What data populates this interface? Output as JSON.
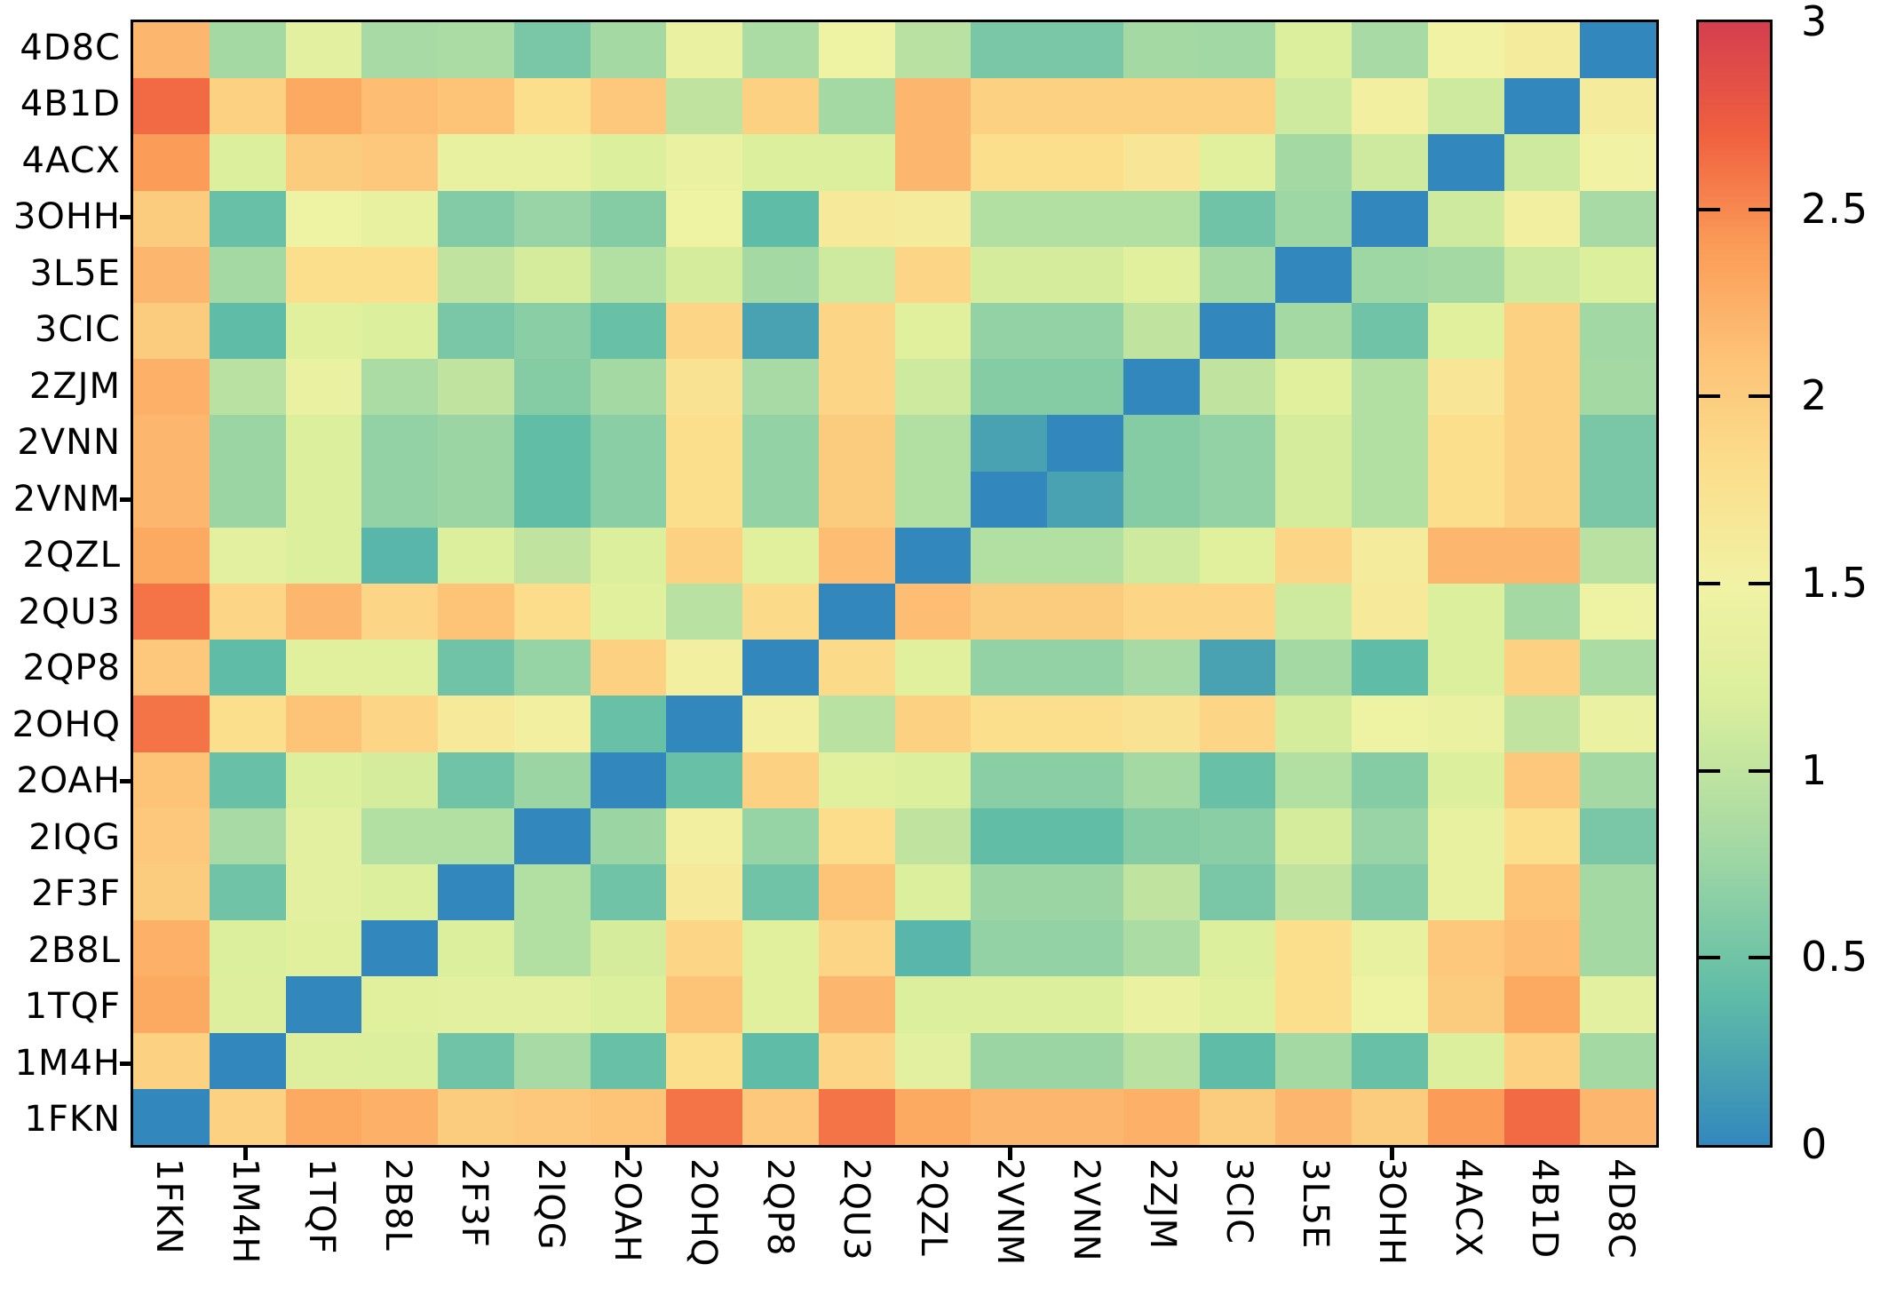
{
  "colors": {
    "background": "#ffffff",
    "plot_border": "#000000",
    "text": "#000000"
  },
  "chart_data": {
    "type": "heatmap",
    "title": "",
    "xlabel": "",
    "ylabel": "",
    "x_labels": [
      "1FKN",
      "1M4H",
      "1TQF",
      "2B8L",
      "2F3F",
      "2IQG",
      "2OAH",
      "2OHQ",
      "2QP8",
      "2QU3",
      "2QZL",
      "2VNM",
      "2VNN",
      "2ZJM",
      "3CIC",
      "3L5E",
      "3OHH",
      "4ACX",
      "4B1D",
      "4D8C"
    ],
    "y_labels": [
      "4D8C",
      "4B1D",
      "4ACX",
      "3OHH",
      "3L5E",
      "3CIC",
      "2ZJM",
      "2VNN",
      "2VNM",
      "2QZL",
      "2QU3",
      "2QP8",
      "2OHQ",
      "2OAH",
      "2IQG",
      "2F3F",
      "2B8L",
      "1TQF",
      "1M4H",
      "1FKN"
    ],
    "matrix": [
      [
        2.2,
        0.8,
        1.3,
        0.82,
        0.85,
        0.55,
        0.8,
        1.4,
        0.85,
        1.45,
        0.95,
        0.55,
        0.55,
        0.8,
        0.78,
        1.2,
        0.82,
        1.5,
        1.6,
        0.0
      ],
      [
        2.65,
        1.95,
        2.3,
        2.15,
        2.1,
        1.8,
        2.05,
        1.0,
        1.95,
        0.8,
        2.2,
        1.95,
        1.95,
        1.95,
        1.95,
        1.1,
        1.55,
        1.1,
        0.0,
        1.6
      ],
      [
        2.4,
        1.2,
        2.0,
        2.05,
        1.35,
        1.35,
        1.2,
        1.4,
        1.2,
        1.2,
        2.2,
        1.8,
        1.8,
        1.7,
        1.25,
        0.8,
        1.1,
        0.0,
        1.1,
        1.5
      ],
      [
        2.0,
        0.45,
        1.45,
        1.35,
        0.6,
        0.73,
        0.62,
        1.45,
        0.4,
        1.65,
        1.6,
        0.9,
        0.9,
        0.9,
        0.5,
        0.77,
        0.0,
        1.1,
        1.55,
        0.82
      ],
      [
        2.2,
        0.8,
        1.8,
        1.8,
        1.0,
        1.15,
        0.9,
        1.15,
        0.8,
        1.1,
        1.9,
        1.15,
        1.15,
        1.25,
        0.8,
        0.0,
        0.77,
        0.8,
        1.1,
        1.2
      ],
      [
        2.0,
        0.4,
        1.25,
        1.2,
        0.55,
        0.65,
        0.45,
        1.9,
        0.2,
        1.9,
        1.25,
        0.7,
        0.7,
        1.0,
        0.0,
        0.8,
        0.5,
        1.25,
        1.95,
        0.78
      ],
      [
        2.25,
        0.95,
        1.4,
        0.85,
        1.0,
        0.62,
        0.8,
        1.75,
        0.82,
        1.9,
        1.1,
        0.62,
        0.62,
        0.0,
        1.0,
        1.25,
        0.9,
        1.7,
        1.95,
        0.8
      ],
      [
        2.2,
        0.75,
        1.2,
        0.7,
        0.75,
        0.42,
        0.65,
        1.8,
        0.7,
        2.0,
        0.9,
        0.2,
        0.0,
        0.62,
        0.7,
        1.15,
        0.9,
        1.8,
        1.95,
        0.55
      ],
      [
        2.2,
        0.75,
        1.2,
        0.7,
        0.75,
        0.42,
        0.65,
        1.8,
        0.7,
        2.0,
        0.9,
        0.0,
        0.2,
        0.62,
        0.7,
        1.15,
        0.9,
        1.8,
        1.95,
        0.55
      ],
      [
        2.3,
        1.3,
        1.2,
        0.35,
        1.2,
        1.0,
        1.2,
        1.95,
        1.25,
        2.15,
        0.0,
        0.9,
        0.9,
        1.1,
        1.25,
        1.9,
        1.6,
        2.2,
        2.2,
        0.95
      ],
      [
        2.6,
        1.9,
        2.2,
        1.9,
        2.1,
        1.82,
        1.25,
        0.95,
        1.85,
        0.0,
        2.15,
        2.0,
        2.0,
        1.9,
        1.9,
        1.1,
        1.65,
        1.2,
        0.8,
        1.45
      ],
      [
        2.05,
        0.4,
        1.25,
        1.25,
        0.5,
        0.72,
        1.95,
        1.55,
        0.0,
        1.85,
        1.25,
        0.7,
        0.7,
        0.82,
        0.2,
        0.8,
        0.4,
        1.2,
        1.95,
        0.85
      ],
      [
        2.6,
        1.8,
        2.1,
        1.9,
        1.65,
        1.55,
        0.45,
        0.0,
        1.55,
        0.95,
        1.95,
        1.8,
        1.8,
        1.75,
        1.9,
        1.15,
        1.45,
        1.4,
        1.0,
        1.4
      ],
      [
        2.1,
        0.45,
        1.2,
        1.15,
        0.5,
        0.75,
        0.0,
        0.45,
        1.95,
        1.25,
        1.2,
        0.65,
        0.65,
        0.8,
        0.45,
        0.9,
        0.62,
        1.2,
        2.05,
        0.8
      ],
      [
        2.05,
        0.82,
        1.3,
        0.9,
        0.9,
        0.0,
        0.75,
        1.55,
        0.72,
        1.82,
        1.0,
        0.42,
        0.42,
        0.62,
        0.65,
        1.15,
        0.73,
        1.35,
        1.8,
        0.55
      ],
      [
        2.0,
        0.5,
        1.3,
        1.2,
        0.0,
        0.9,
        0.5,
        1.65,
        0.5,
        2.1,
        1.2,
        0.75,
        0.75,
        1.0,
        0.55,
        1.0,
        0.6,
        1.35,
        2.1,
        0.8
      ],
      [
        2.25,
        1.2,
        1.25,
        0.0,
        1.2,
        0.9,
        1.15,
        1.9,
        1.25,
        1.9,
        0.35,
        0.7,
        0.7,
        0.85,
        1.2,
        1.8,
        1.35,
        2.05,
        2.15,
        0.8
      ],
      [
        2.3,
        1.22,
        0.0,
        1.25,
        1.3,
        1.3,
        1.2,
        2.1,
        1.25,
        2.2,
        1.2,
        1.2,
        1.2,
        1.4,
        1.25,
        1.8,
        1.45,
        2.0,
        2.3,
        1.3
      ],
      [
        1.95,
        0.0,
        1.22,
        1.2,
        0.5,
        0.82,
        0.45,
        1.8,
        0.4,
        1.9,
        1.3,
        0.75,
        0.75,
        0.95,
        0.4,
        0.8,
        0.45,
        1.2,
        1.95,
        0.8
      ],
      [
        0.0,
        1.95,
        2.3,
        2.25,
        2.0,
        2.05,
        2.1,
        2.6,
        2.05,
        2.6,
        2.3,
        2.2,
        2.2,
        2.25,
        2.0,
        2.2,
        2.0,
        2.4,
        2.65,
        2.2
      ]
    ],
    "grid": false,
    "legend_position": "right-colorbar",
    "colorbar": {
      "min": 0,
      "max": 3,
      "tick_values": [
        0,
        0.5,
        1,
        1.5,
        2,
        2.5,
        3
      ],
      "tick_labels": [
        "0",
        "0.5",
        "1",
        "1.5",
        "2",
        "2.5",
        "3"
      ],
      "colormap_stops": [
        [
          0.0,
          "#3288bd"
        ],
        [
          0.4,
          "#5fbca7"
        ],
        [
          0.8,
          "#a4d9a4"
        ],
        [
          1.2,
          "#dcef9c"
        ],
        [
          1.5,
          "#f1f2a4"
        ],
        [
          1.8,
          "#fbdf8d"
        ],
        [
          2.1,
          "#fdc377"
        ],
        [
          2.4,
          "#fb9c58"
        ],
        [
          2.7,
          "#f0603f"
        ],
        [
          3.0,
          "#d53e4f"
        ]
      ]
    },
    "axis_tick_marks": {
      "x_at_label_indices": [
        1,
        6,
        11,
        16
      ],
      "y_at_label_indices": [
        3,
        8,
        13,
        18
      ]
    }
  }
}
